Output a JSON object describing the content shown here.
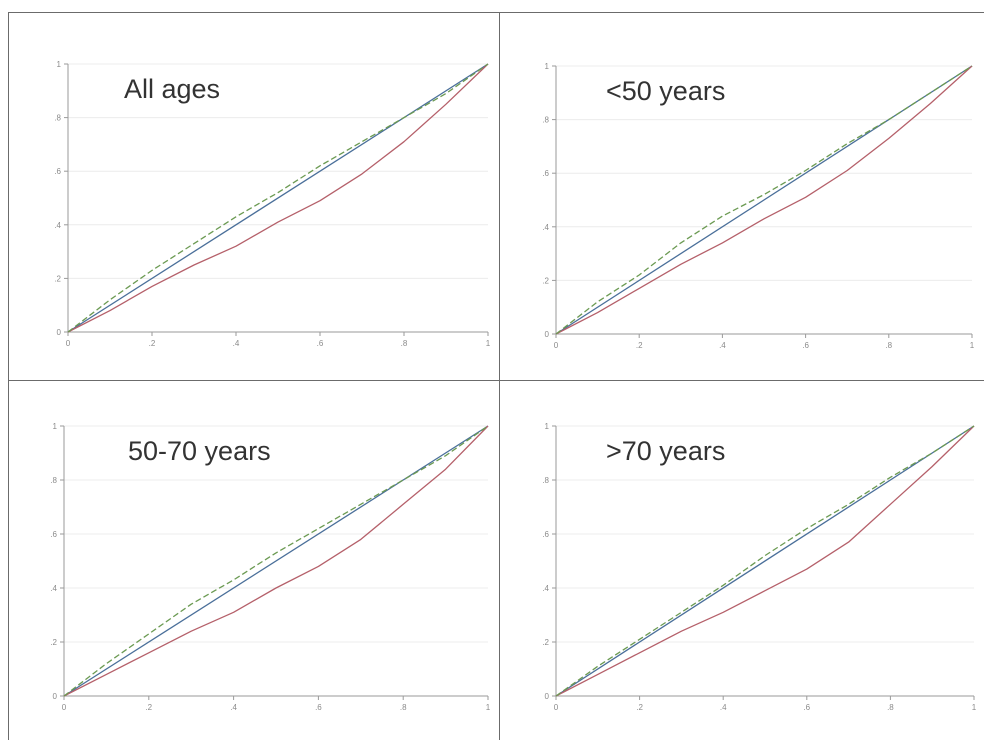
{
  "colors": {
    "diagonal": "#4a6f9a",
    "solid_curve": "#b5606a",
    "dashed_curve": "#6b9a52",
    "gridline": "#ececec",
    "axis": "#9a9a9a",
    "tick_text": "#8a8a8a",
    "panel_title": "#333333"
  },
  "chart_data": [
    {
      "type": "line",
      "title": "All ages",
      "xlim": [
        0,
        1
      ],
      "ylim": [
        0,
        1
      ],
      "x_ticks": [
        0,
        0.2,
        0.4,
        0.6,
        0.8,
        1
      ],
      "y_ticks": [
        0,
        0.2,
        0.4,
        0.6,
        0.8,
        1
      ],
      "x_tick_labels": [
        "0",
        ".2",
        ".4",
        ".6",
        ".8",
        "1"
      ],
      "y_tick_labels": [
        "0",
        ".2",
        ".4",
        ".6",
        ".8",
        "1"
      ],
      "grid": true,
      "legend": "none",
      "series": [
        {
          "style": "solid",
          "color_key": "diagonal",
          "x": [
            0,
            1
          ],
          "y": [
            0,
            1
          ]
        },
        {
          "style": "solid",
          "color_key": "solid_curve",
          "x": [
            0,
            0.1,
            0.2,
            0.3,
            0.4,
            0.5,
            0.6,
            0.7,
            0.8,
            0.9,
            1
          ],
          "y": [
            0,
            0.08,
            0.17,
            0.25,
            0.32,
            0.41,
            0.49,
            0.59,
            0.71,
            0.85,
            1
          ]
        },
        {
          "style": "dashed",
          "color_key": "dashed_curve",
          "x": [
            0,
            0.1,
            0.2,
            0.3,
            0.4,
            0.5,
            0.6,
            0.7,
            0.8,
            0.9,
            1
          ],
          "y": [
            0,
            0.12,
            0.23,
            0.33,
            0.43,
            0.52,
            0.62,
            0.71,
            0.8,
            0.89,
            1
          ]
        }
      ]
    },
    {
      "type": "line",
      "title": "<50 years",
      "xlim": [
        0,
        1
      ],
      "ylim": [
        0,
        1
      ],
      "x_ticks": [
        0,
        0.2,
        0.4,
        0.6,
        0.8,
        1
      ],
      "y_ticks": [
        0,
        0.2,
        0.4,
        0.6,
        0.8,
        1
      ],
      "x_tick_labels": [
        "0",
        ".2",
        ".4",
        ".6",
        ".8",
        "1"
      ],
      "y_tick_labels": [
        "0",
        ".2",
        ".4",
        ".6",
        ".8",
        "1"
      ],
      "grid": true,
      "legend": "none",
      "series": [
        {
          "style": "solid",
          "color_key": "diagonal",
          "x": [
            0,
            1
          ],
          "y": [
            0,
            1
          ]
        },
        {
          "style": "solid",
          "color_key": "solid_curve",
          "x": [
            0,
            0.1,
            0.2,
            0.3,
            0.4,
            0.5,
            0.6,
            0.7,
            0.8,
            0.9,
            1
          ],
          "y": [
            0,
            0.08,
            0.17,
            0.26,
            0.34,
            0.43,
            0.51,
            0.61,
            0.73,
            0.86,
            1
          ]
        },
        {
          "style": "dashed",
          "color_key": "dashed_curve",
          "x": [
            0,
            0.1,
            0.2,
            0.3,
            0.4,
            0.5,
            0.6,
            0.7,
            0.8,
            0.9,
            1
          ],
          "y": [
            0,
            0.12,
            0.22,
            0.34,
            0.44,
            0.52,
            0.61,
            0.71,
            0.8,
            0.9,
            1
          ]
        }
      ]
    },
    {
      "type": "line",
      "title": "50-70 years",
      "xlim": [
        0,
        1
      ],
      "ylim": [
        0,
        1
      ],
      "x_ticks": [
        0,
        0.2,
        0.4,
        0.6,
        0.8,
        1
      ],
      "y_ticks": [
        0,
        0.2,
        0.4,
        0.6,
        0.8,
        1
      ],
      "x_tick_labels": [
        "0",
        ".2",
        ".4",
        ".6",
        ".8",
        "1"
      ],
      "y_tick_labels": [
        "0",
        ".2",
        ".4",
        ".6",
        ".8",
        "1"
      ],
      "grid": true,
      "legend": "none",
      "series": [
        {
          "style": "solid",
          "color_key": "diagonal",
          "x": [
            0,
            1
          ],
          "y": [
            0,
            1
          ]
        },
        {
          "style": "solid",
          "color_key": "solid_curve",
          "x": [
            0,
            0.1,
            0.2,
            0.3,
            0.4,
            0.5,
            0.6,
            0.7,
            0.8,
            0.9,
            1
          ],
          "y": [
            0,
            0.08,
            0.16,
            0.24,
            0.31,
            0.4,
            0.48,
            0.58,
            0.71,
            0.84,
            1
          ]
        },
        {
          "style": "dashed",
          "color_key": "dashed_curve",
          "x": [
            0,
            0.1,
            0.2,
            0.3,
            0.4,
            0.5,
            0.6,
            0.7,
            0.8,
            0.9,
            1
          ],
          "y": [
            0,
            0.12,
            0.23,
            0.34,
            0.43,
            0.53,
            0.62,
            0.71,
            0.8,
            0.89,
            1
          ]
        }
      ]
    },
    {
      "type": "line",
      "title": ">70 years",
      "xlim": [
        0,
        1
      ],
      "ylim": [
        0,
        1
      ],
      "x_ticks": [
        0,
        0.2,
        0.4,
        0.6,
        0.8,
        1
      ],
      "y_ticks": [
        0,
        0.2,
        0.4,
        0.6,
        0.8,
        1
      ],
      "x_tick_labels": [
        "0",
        ".2",
        ".4",
        ".6",
        ".8",
        "1"
      ],
      "y_tick_labels": [
        "0",
        ".2",
        ".4",
        ".6",
        ".8",
        "1"
      ],
      "grid": true,
      "legend": "none",
      "series": [
        {
          "style": "solid",
          "color_key": "diagonal",
          "x": [
            0,
            1
          ],
          "y": [
            0,
            1
          ]
        },
        {
          "style": "solid",
          "color_key": "solid_curve",
          "x": [
            0,
            0.1,
            0.2,
            0.3,
            0.4,
            0.5,
            0.6,
            0.7,
            0.8,
            0.9,
            1
          ],
          "y": [
            0,
            0.08,
            0.16,
            0.24,
            0.31,
            0.39,
            0.47,
            0.57,
            0.71,
            0.85,
            1
          ]
        },
        {
          "style": "dashed",
          "color_key": "dashed_curve",
          "x": [
            0,
            0.1,
            0.2,
            0.3,
            0.4,
            0.5,
            0.6,
            0.7,
            0.8,
            0.9,
            1
          ],
          "y": [
            0,
            0.11,
            0.21,
            0.31,
            0.41,
            0.52,
            0.62,
            0.71,
            0.81,
            0.9,
            1
          ]
        }
      ]
    }
  ]
}
